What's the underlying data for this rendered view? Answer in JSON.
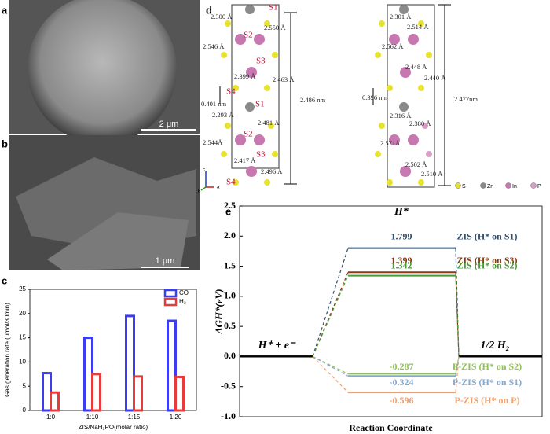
{
  "panels": {
    "a": {
      "letter": "a",
      "scale": "2 μm"
    },
    "b": {
      "letter": "b",
      "scale": "1 μm"
    },
    "c": {
      "letter": "c"
    },
    "d": {
      "letter": "d",
      "labels": [
        "S1",
        "2.300 Å",
        "2.550 Å",
        "S2",
        "2.546 Å",
        "S3",
        "2.399 Å",
        "2.463 Å",
        "S4",
        "0.401 nm",
        "S1",
        "2.293 Å",
        "2.481 Å",
        "S2",
        "2.544Å",
        "2.417 Å",
        "S3",
        "2.496 Å",
        "S4",
        "2.486 nm",
        "2.301 Å",
        "2.514 Å",
        "2.562 Å",
        "2.448 Å",
        "2.440 Å",
        "0.396 nm",
        "2.316 Å",
        "2.380 Å",
        "2.571Å",
        "2.502 Å",
        "2.510 Å",
        "2.477nm"
      ],
      "legend": [
        "S",
        "Zn",
        "In",
        "P"
      ],
      "axes": [
        "c",
        "a",
        "b"
      ]
    },
    "e": {
      "letter": "e"
    }
  },
  "chart_data": [
    {
      "type": "bar",
      "ylabel": "Gas generation rate (umol/30min)",
      "xlabel": "ZIS/NaH₂PO(molar ratio)",
      "categories": [
        "1:0",
        "1:10",
        "1:15",
        "1:20"
      ],
      "series": [
        {
          "name": "CO",
          "color": "#3c3cf0",
          "values": [
            7.7,
            15,
            19.5,
            18.5
          ]
        },
        {
          "name": "H₂",
          "color": "#e83c3c",
          "values": [
            3.7,
            7.5,
            7,
            6.9
          ]
        }
      ],
      "ylim": [
        0,
        25
      ],
      "yticks": [
        0,
        5,
        10,
        15,
        20,
        25
      ],
      "legend": "upper right"
    },
    {
      "type": "energy-profile",
      "ylabel": "ΔGH*(eV)",
      "xlabel": "Reaction Coordinate",
      "stages": [
        "H⁺ + e⁻",
        "H*",
        "1/2 H₂"
      ],
      "series": [
        {
          "name": "ZIS (H* on S1)",
          "color": "#2f4f70",
          "values": [
            0,
            1.799,
            0
          ]
        },
        {
          "name": "ZIS (H* on S3)",
          "color": "#8b3a14",
          "values": [
            0,
            1.399,
            0
          ]
        },
        {
          "name": "ZIS (H* on S2)",
          "color": "#4a9a3a",
          "values": [
            0,
            1.342,
            0
          ]
        },
        {
          "name": "P-ZIS (H* on S2)",
          "color": "#8cc455",
          "values": [
            0,
            -0.287,
            0
          ]
        },
        {
          "name": "P-ZIS (H* on S1)",
          "color": "#86a8d0",
          "values": [
            0,
            -0.324,
            0
          ]
        },
        {
          "name": "P-ZIS (H* on P)",
          "color": "#f0a070",
          "values": [
            0,
            -0.596,
            0
          ]
        }
      ],
      "ylim": [
        -1.0,
        2.5
      ],
      "yticks": [
        {
          "value": -1.0,
          "label": "-1.0"
        },
        {
          "value": -0.5,
          "label": "-0.5"
        },
        {
          "value": 0.0,
          "label": "0.0"
        },
        {
          "value": 0.5,
          "label": "0.5"
        },
        {
          "value": 1.0,
          "label": "1.0"
        },
        {
          "value": 1.5,
          "label": "1.5"
        },
        {
          "value": 2.0,
          "label": "2.0"
        },
        {
          "value": 2.5,
          "label": "2.5"
        }
      ]
    }
  ]
}
